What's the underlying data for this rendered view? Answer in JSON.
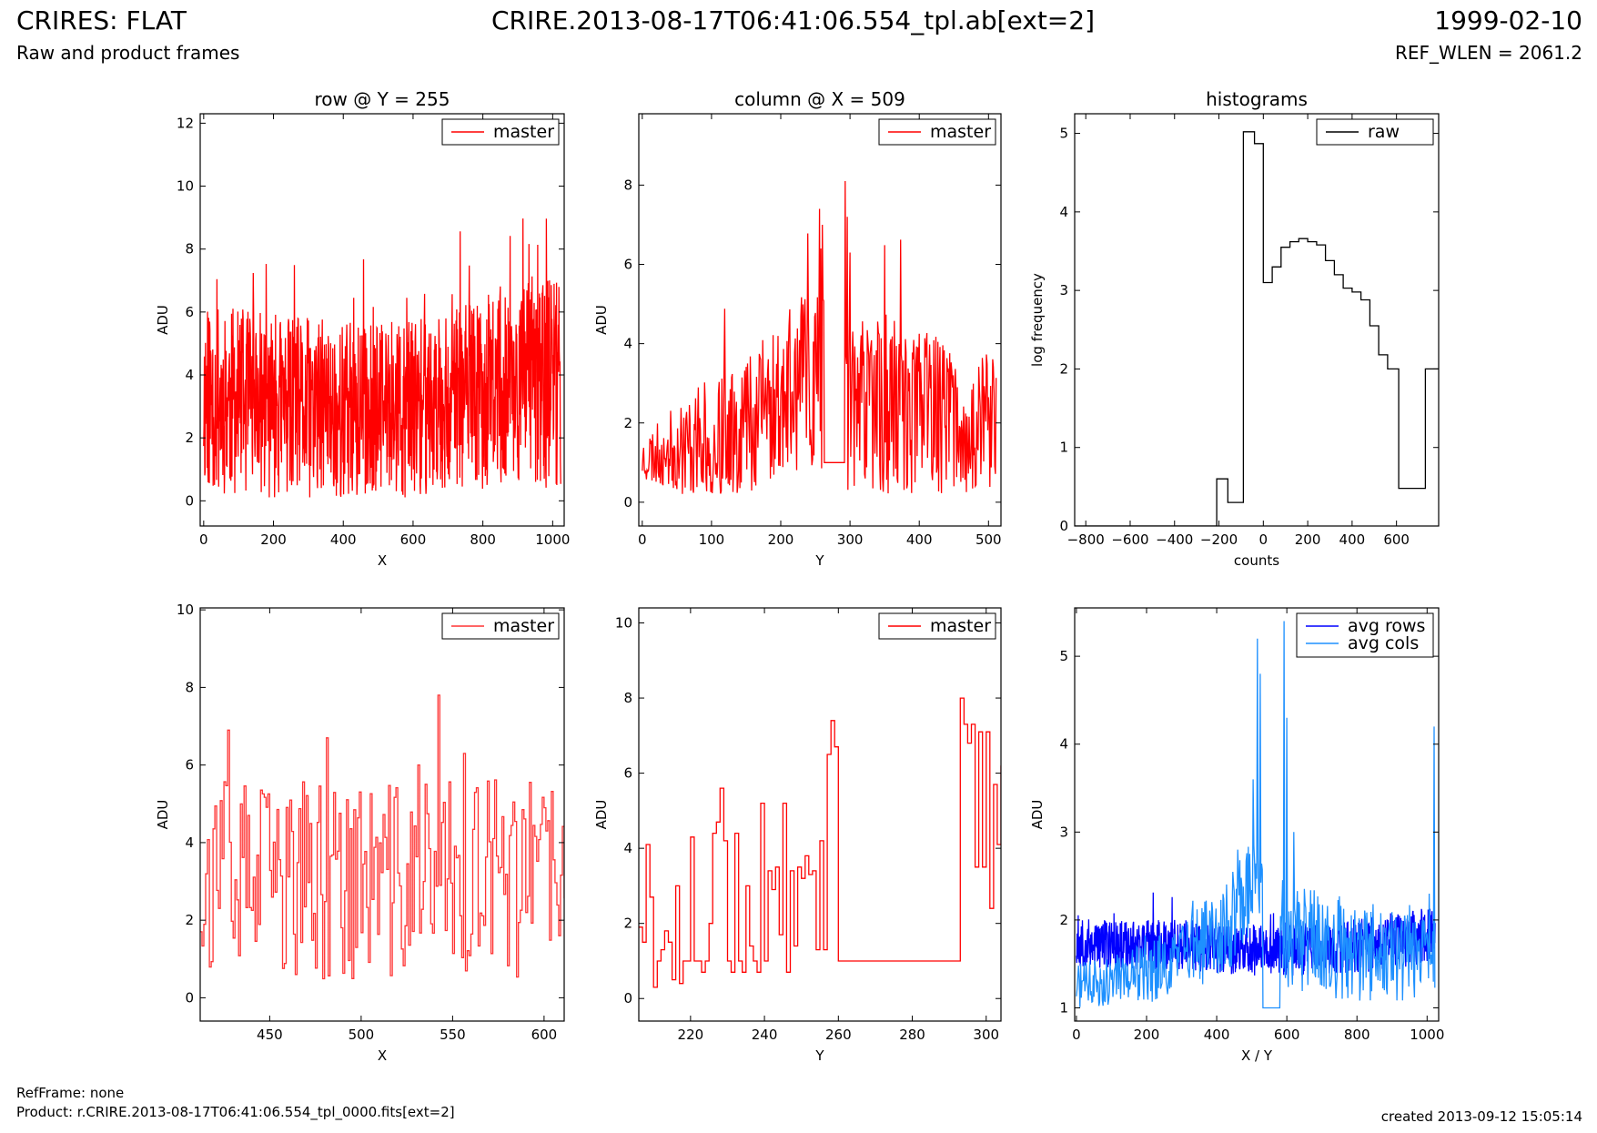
{
  "header": {
    "title_left": "CRIRES: FLAT",
    "subtitle_left": "Raw and product frames",
    "title_center": "CRIRE.2013-08-17T06:41:06.554_tpl.ab[ext=2]",
    "title_right": "1999-02-10",
    "ref_wlen": "REF_WLEN = 2061.2"
  },
  "footer": {
    "ref_frame": "RefFrame: none",
    "product": "Product: r.CRIRE.2013-08-17T06:41:06.554_tpl_0000.fits[ext=2]",
    "created": "created 2013-09-12 15:05:14"
  },
  "colors": {
    "master": "#ff0000",
    "master_zoom": "#ff3333",
    "raw": "#000000",
    "avg_rows": "#0000ff",
    "avg_cols": "#1e90ff"
  },
  "chart_data": [
    {
      "id": "row",
      "type": "line",
      "title": "row @ Y = 255",
      "xlabel": "X",
      "ylabel": "ADU",
      "xlim": [
        -10,
        1033
      ],
      "ylim": [
        -0.8,
        12.3
      ],
      "xticks": [
        0,
        200,
        400,
        600,
        800,
        1000
      ],
      "yticks": [
        0,
        2,
        4,
        6,
        8,
        10,
        12
      ],
      "legend": "top-right",
      "series": [
        {
          "name": "master",
          "color": "#ff0000",
          "style": "line",
          "n": 1024,
          "x_start": 0,
          "x_step": 1,
          "seed": 11,
          "anchors": [
            [
              0,
              3.3
            ],
            [
              200,
              3.0
            ],
            [
              400,
              2.8
            ],
            [
              600,
              2.9
            ],
            [
              750,
              3.3
            ],
            [
              1023,
              4.0
            ]
          ],
          "spread": [
            [
              0,
              3.0
            ],
            [
              700,
              2.8
            ],
            [
              1023,
              3.6
            ]
          ],
          "floor": 0.1
        }
      ]
    },
    {
      "id": "column",
      "type": "line",
      "title": "column @ X = 509",
      "xlabel": "Y",
      "ylabel": "ADU",
      "xlim": [
        -5,
        518
      ],
      "ylim": [
        -0.6,
        9.8
      ],
      "xticks": [
        0,
        100,
        200,
        300,
        400,
        500
      ],
      "yticks": [
        0,
        2,
        4,
        6,
        8
      ],
      "legend": "top-right",
      "series": [
        {
          "name": "master",
          "color": "#ff0000",
          "style": "line",
          "n": 512,
          "x_start": 0,
          "x_step": 1,
          "seed": 23,
          "anchors": [
            [
              0,
              1.1
            ],
            [
              100,
              1.6
            ],
            [
              200,
              2.6
            ],
            [
              255,
              3.2
            ],
            [
              300,
              2.5
            ],
            [
              511,
              1.9
            ]
          ],
          "spread": [
            [
              0,
              0.6
            ],
            [
              100,
              1.6
            ],
            [
              300,
              2.6
            ],
            [
              511,
              1.8
            ]
          ],
          "floor": 0.2,
          "flat": [
            [
              263,
              292,
              1.0
            ]
          ],
          "peaks": [
            [
              256,
              7.4
            ],
            [
              258,
              6.4
            ],
            [
              260,
              7.0
            ],
            [
              293,
              8.1
            ],
            [
              296,
              7.2
            ],
            [
              300,
              6.3
            ]
          ]
        }
      ]
    },
    {
      "id": "histograms",
      "type": "line",
      "title": "histograms",
      "xlabel": "counts",
      "ylabel": "log frequency",
      "xlim": [
        -850,
        790
      ],
      "ylim": [
        0,
        5.25
      ],
      "xticks": [
        -800,
        -600,
        -400,
        -200,
        0,
        200,
        400,
        600
      ],
      "yticks": [
        0,
        1,
        2,
        3,
        4,
        5
      ],
      "legend": "top-right",
      "series": [
        {
          "name": "raw",
          "color": "#000000",
          "style": "steps",
          "x": [
            -850,
            -210,
            -160,
            -90,
            -40,
            0,
            40,
            80,
            120,
            160,
            200,
            240,
            280,
            320,
            360,
            400,
            440,
            480,
            520,
            560,
            610,
            730,
            790
          ],
          "y": [
            0,
            0.6,
            0.3,
            5.02,
            4.87,
            3.1,
            3.3,
            3.55,
            3.62,
            3.66,
            3.62,
            3.58,
            3.38,
            3.2,
            3.03,
            2.98,
            2.88,
            2.55,
            2.18,
            2.0,
            0.48,
            2.0,
            2.0
          ]
        }
      ]
    },
    {
      "id": "row-zoom",
      "type": "line",
      "title": "",
      "xlabel": "X",
      "ylabel": "ADU",
      "xlim": [
        412,
        611
      ],
      "ylim": [
        -0.6,
        10.05
      ],
      "xticks": [
        450,
        500,
        550,
        600
      ],
      "yticks": [
        0,
        2,
        4,
        6,
        8,
        10
      ],
      "legend": "top-right",
      "series": [
        {
          "name": "master",
          "color": "#ff3333",
          "style": "steps",
          "n": 200,
          "x_start": 412,
          "x_step": 1,
          "seed": 37,
          "anchors": [
            [
              412,
              3.0
            ],
            [
              500,
              3.0
            ],
            [
              611,
              3.1
            ]
          ],
          "spread": [
            [
              412,
              2.6
            ],
            [
              611,
              2.6
            ]
          ],
          "floor": 0.2,
          "peaks": [
            [
              481,
              6.7
            ],
            [
              542,
              7.8
            ],
            [
              556,
              6.3
            ],
            [
              531,
              6.0
            ]
          ]
        }
      ]
    },
    {
      "id": "column-zoom",
      "type": "line",
      "title": "",
      "xlabel": "Y",
      "ylabel": "ADU",
      "xlim": [
        206,
        304
      ],
      "ylim": [
        -0.6,
        10.4
      ],
      "xticks": [
        220,
        240,
        260,
        280,
        300
      ],
      "yticks": [
        0,
        2,
        4,
        6,
        8,
        10
      ],
      "legend": "top-right",
      "series": [
        {
          "name": "master",
          "color": "#ff0000",
          "style": "steps",
          "x": [
            206,
            207,
            208,
            209,
            210,
            211,
            212,
            213,
            214,
            215,
            216,
            217,
            218,
            219,
            220,
            221,
            222,
            223,
            224,
            225,
            226,
            227,
            228,
            229,
            230,
            231,
            232,
            233,
            234,
            235,
            236,
            237,
            238,
            239,
            240,
            241,
            242,
            243,
            244,
            245,
            246,
            247,
            248,
            249,
            250,
            251,
            252,
            253,
            254,
            255,
            256,
            257,
            258,
            259,
            260,
            293,
            294,
            295,
            296,
            297,
            298,
            299,
            300,
            301,
            302,
            303,
            304
          ],
          "y": [
            1.9,
            1.5,
            4.1,
            2.7,
            0.3,
            1.0,
            1.3,
            1.8,
            1.5,
            0.5,
            3.0,
            0.4,
            1.0,
            1.0,
            4.3,
            1.0,
            1.0,
            0.7,
            1.0,
            2.0,
            4.4,
            4.7,
            5.6,
            4.2,
            1.0,
            0.7,
            4.4,
            1.0,
            0.7,
            3.0,
            1.4,
            1.0,
            0.7,
            5.2,
            1.0,
            3.4,
            2.9,
            3.5,
            1.7,
            5.2,
            0.7,
            3.4,
            1.4,
            3.5,
            3.2,
            3.8,
            3.3,
            3.4,
            1.3,
            4.2,
            1.3,
            6.5,
            7.4,
            6.7,
            1.0,
            8.0,
            7.3,
            6.8,
            7.3,
            3.5,
            7.1,
            3.5,
            7.1,
            2.4,
            5.7,
            4.1,
            6.2
          ]
        }
      ]
    },
    {
      "id": "averages",
      "type": "line",
      "title": "",
      "xlabel": "X / Y",
      "ylabel": "ADU",
      "xlim": [
        -5,
        1033
      ],
      "ylim": [
        0.85,
        5.55
      ],
      "xticks": [
        0,
        200,
        400,
        600,
        800,
        1000
      ],
      "yticks": [
        1,
        2,
        3,
        4,
        5
      ],
      "legend": "top-right",
      "series": [
        {
          "name": "avg rows",
          "color": "#0000ff",
          "style": "line",
          "n": 1024,
          "x_start": 0,
          "x_step": 1,
          "seed": 53,
          "anchors": [
            [
              0,
              1.73
            ],
            [
              300,
              1.72
            ],
            [
              500,
              1.66
            ],
            [
              700,
              1.66
            ],
            [
              900,
              1.75
            ],
            [
              1023,
              1.85
            ]
          ],
          "spread": [
            [
              0,
              0.28
            ],
            [
              1023,
              0.32
            ]
          ],
          "floor": 1.1
        },
        {
          "name": "avg cols",
          "color": "#1e90ff",
          "style": "line",
          "n": 512,
          "x_start": 0,
          "x_step": 2,
          "seed": 71,
          "anchors": [
            [
              0,
              1.25
            ],
            [
              100,
              1.4
            ],
            [
              200,
              1.8
            ],
            [
              250,
              2.3
            ],
            [
              300,
              1.8
            ],
            [
              400,
              1.65
            ],
            [
              511,
              1.55
            ]
          ],
          "spread": [
            [
              0,
              0.25
            ],
            [
              100,
              0.35
            ],
            [
              250,
              0.6
            ],
            [
              400,
              0.6
            ],
            [
              511,
              0.45
            ]
          ],
          "floor": 0.95,
          "flat": [
            [
              266,
              290,
              1.0
            ]
          ],
          "peaks": [
            [
              230,
              2.8
            ],
            [
              252,
              3.6
            ],
            [
              258,
              5.2
            ],
            [
              262,
              4.8
            ],
            [
              296,
              5.4
            ],
            [
              300,
              4.3
            ],
            [
              310,
              3.0
            ],
            [
              510,
              4.2
            ]
          ]
        }
      ]
    }
  ]
}
